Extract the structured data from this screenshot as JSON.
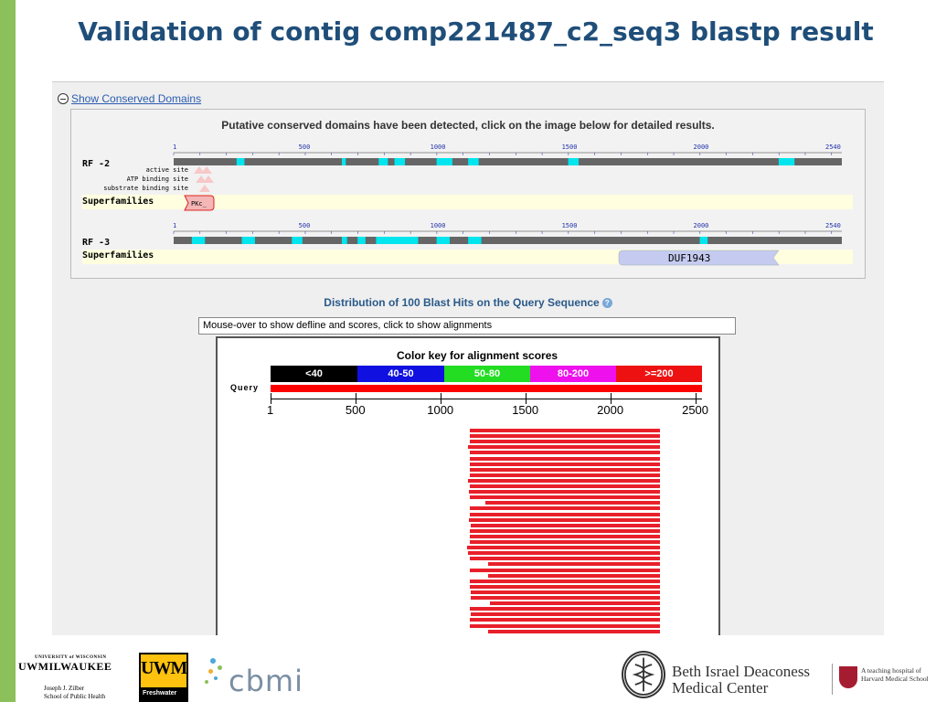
{
  "slide": {
    "title": "Validation of contig comp221487_c2_seq3 blastp result",
    "accent_color": "#8cc05a",
    "title_color": "#1f4e79"
  },
  "conserved_domains": {
    "toggle_label": "Show Conserved Domains",
    "message": "Putative conserved domains have been detected, click on the image below for detailed results.",
    "scale_ticks": [
      "1",
      "500",
      "1000",
      "1500",
      "2000",
      "2540"
    ],
    "frames": [
      {
        "label": "RF -2",
        "sites": [
          "active site",
          "ATP binding site",
          "substrate binding site"
        ],
        "superfamilies_label": "Superfamilies",
        "superfamily": "PKc_"
      },
      {
        "label": "RF -3",
        "superfamilies_label": "Superfamilies",
        "superfamily": "DUF1943"
      }
    ]
  },
  "distribution": {
    "title": "Distribution of 100 Blast Hits on the Query Sequence",
    "help_icon": "help-icon",
    "mouseover_text": "Mouse-over to show defline and scores, click to show alignments",
    "color_key_title": "Color key for alignment scores",
    "color_key": [
      {
        "label": "<40",
        "color": "#000000"
      },
      {
        "label": "40-50",
        "color": "#1010e0"
      },
      {
        "label": "50-80",
        "color": "#22dd22"
      },
      {
        "label": "80-200",
        "color": "#ee11ee"
      },
      {
        "label": ">=200",
        "color": "#ee1111"
      }
    ],
    "query_label": "Query",
    "scale_labels": [
      "1",
      "500",
      "1000",
      "1500",
      "2000",
      "2500"
    ],
    "query_length": 2540,
    "hits": [
      [
        1175,
        2290
      ],
      [
        1175,
        2290
      ],
      [
        1175,
        2290
      ],
      [
        1165,
        2290
      ],
      [
        1175,
        2290
      ],
      [
        1175,
        2290
      ],
      [
        1175,
        2290
      ],
      [
        1175,
        2290
      ],
      [
        1175,
        2290
      ],
      [
        1165,
        2290
      ],
      [
        1175,
        2290
      ],
      [
        1170,
        2290
      ],
      [
        1175,
        2290
      ],
      [
        1265,
        2290
      ],
      [
        1175,
        2290
      ],
      [
        1175,
        2290
      ],
      [
        1170,
        2290
      ],
      [
        1180,
        2290
      ],
      [
        1175,
        2290
      ],
      [
        1175,
        2290
      ],
      [
        1175,
        2290
      ],
      [
        1160,
        2290
      ],
      [
        1165,
        2290
      ],
      [
        1175,
        2290
      ],
      [
        1280,
        2290
      ],
      [
        1175,
        2290
      ],
      [
        1280,
        2290
      ],
      [
        1175,
        2290
      ],
      [
        1175,
        2290
      ],
      [
        1180,
        2290
      ],
      [
        1180,
        2290
      ],
      [
        1290,
        2290
      ],
      [
        1175,
        2290
      ],
      [
        1180,
        2290
      ],
      [
        1175,
        2290
      ],
      [
        1175,
        2290
      ],
      [
        1280,
        2290
      ],
      [
        1175,
        2290
      ],
      [
        1175,
        2290
      ]
    ]
  },
  "logos": {
    "uwm_small": "UNIVERSITY of WISCONSIN",
    "uwm_name": "UWMILWAUKEE",
    "uwm_school_1": "Joseph J. Zilber",
    "uwm_school_2": "School of Public Health",
    "freshwater_top": "UWM",
    "freshwater_bottom": "Freshwater",
    "cbmi": "cbmi",
    "bidmc_line1": "Beth Israel Deaconess",
    "bidmc_line2": "Medical Center",
    "harvard_line1": "A teaching hospital of",
    "harvard_line2": "Harvard Medical School"
  }
}
